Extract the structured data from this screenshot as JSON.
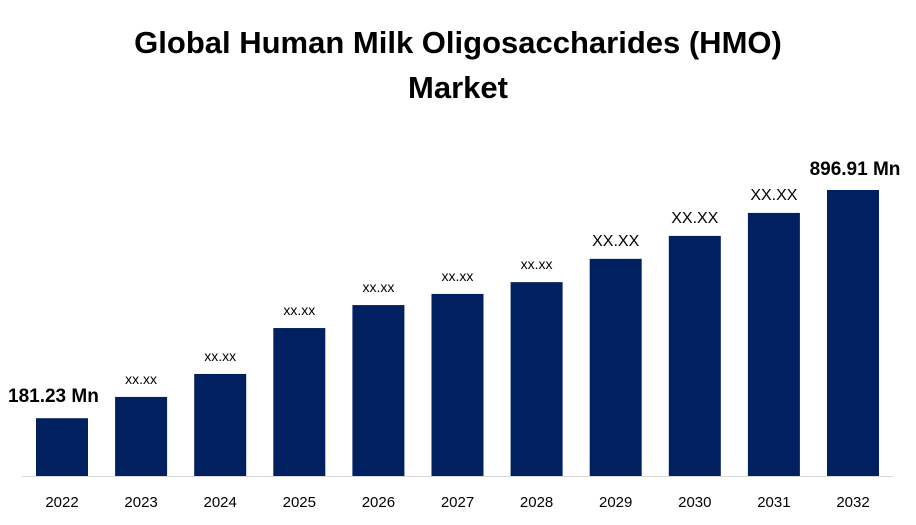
{
  "chart_data": {
    "type": "bar",
    "title": "Global Human Milk Oligosaccharides (HMO) Market",
    "categories": [
      "2022",
      "2023",
      "2024",
      "2025",
      "2026",
      "2027",
      "2028",
      "2029",
      "2030",
      "2031",
      "2032"
    ],
    "values": [
      181.23,
      248,
      320,
      464,
      536,
      571,
      608,
      681,
      753,
      825,
      896.91
    ],
    "value_labels": [
      "181.23 Mn",
      "xx.xx",
      "xx.xx",
      "xx.xx",
      "xx.xx",
      "xx.xx",
      "xx.xx",
      "XX.XX",
      "XX.XX",
      "XX.XX",
      "896.91 Mn"
    ],
    "color": "#002060"
  }
}
